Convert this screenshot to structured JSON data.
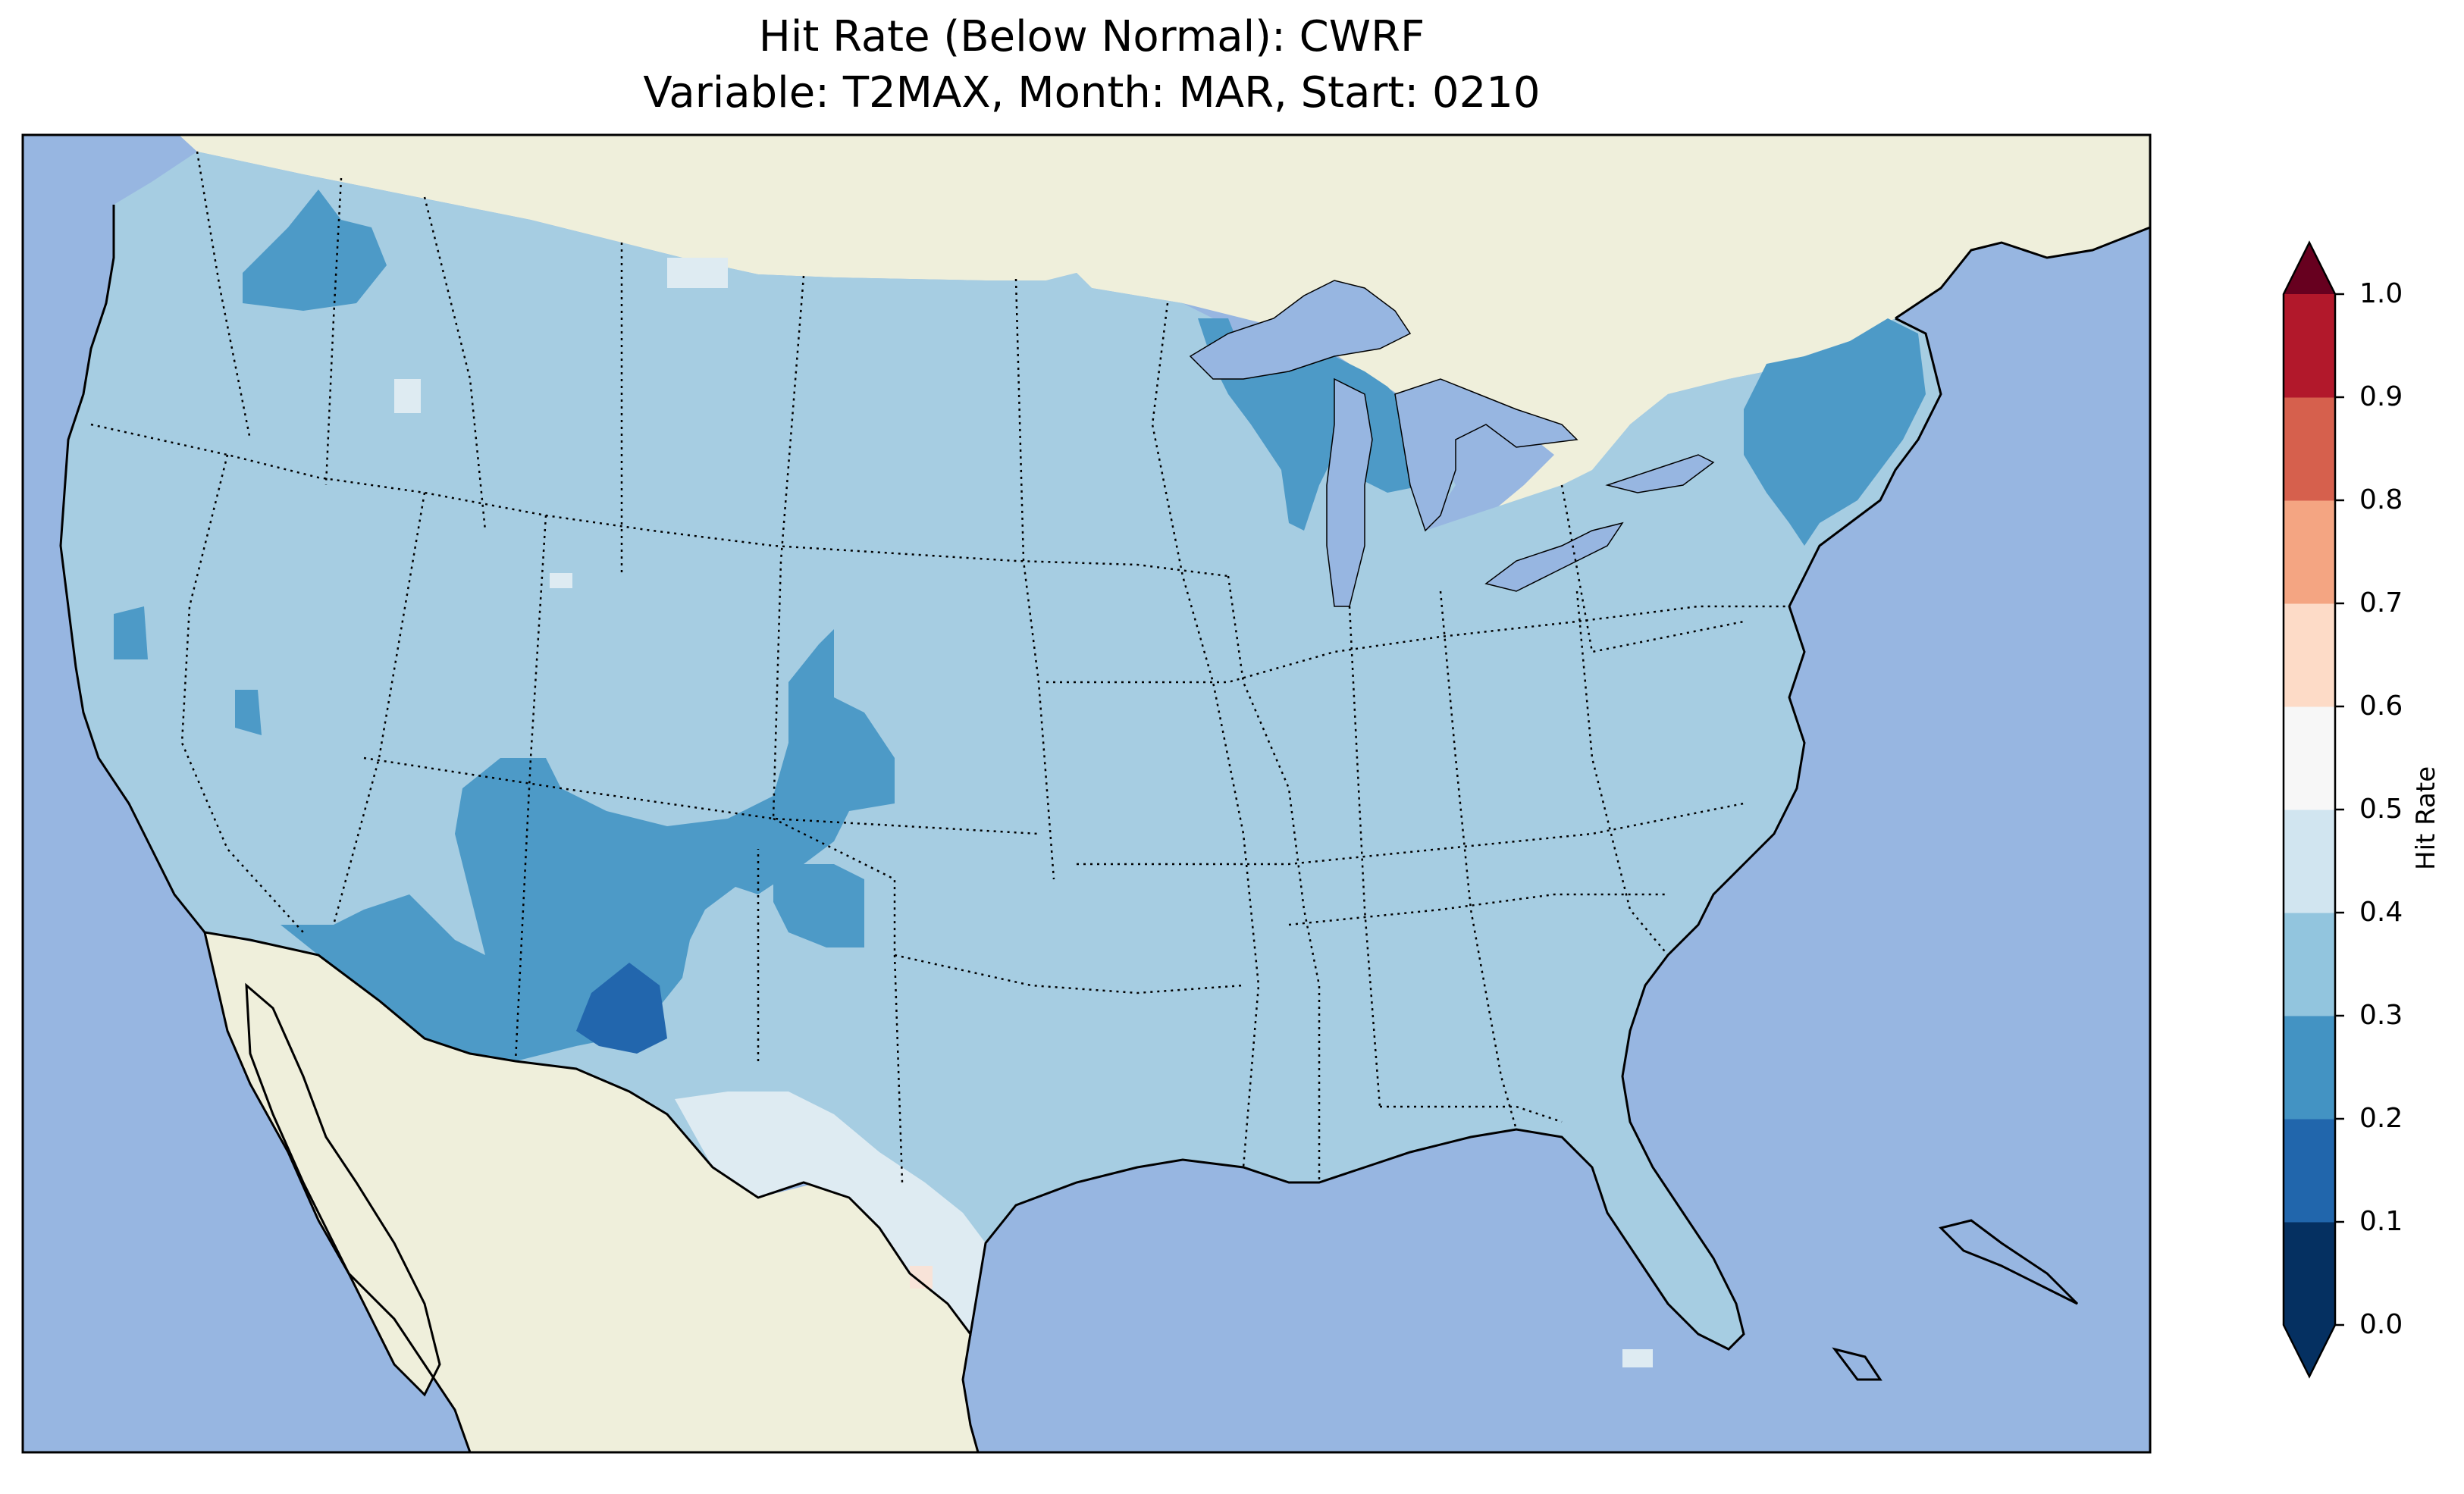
{
  "title_line1": "Hit Rate (Below Normal): CWRF",
  "title_line2": "Variable: T2MAX, Month: MAR, Start: 0210",
  "colorbar": {
    "label": "Hit Rate",
    "ticks": [
      "0.0",
      "0.1",
      "0.2",
      "0.3",
      "0.4",
      "0.5",
      "0.6",
      "0.7",
      "0.8",
      "0.9",
      "1.0"
    ],
    "colors": [
      "#053061",
      "#2166ac",
      "#4393c3",
      "#92c5de",
      "#d1e5f0",
      "#f7f7f7",
      "#fddbc7",
      "#f4a582",
      "#d6604d",
      "#b2182b",
      "#67001f"
    ],
    "extend": "both"
  },
  "colors": {
    "ocean": "#97b6e1",
    "land": "#efefdb",
    "hit_0.3_0.4": "#a6cde2",
    "hit_0.2_0.3": "#4d9ac7",
    "hit_0.1_0.2": "#2266ad",
    "hit_0.4_0.5": "#deebf2",
    "hit_0.5_0.6": "#f8e3d8"
  }
}
